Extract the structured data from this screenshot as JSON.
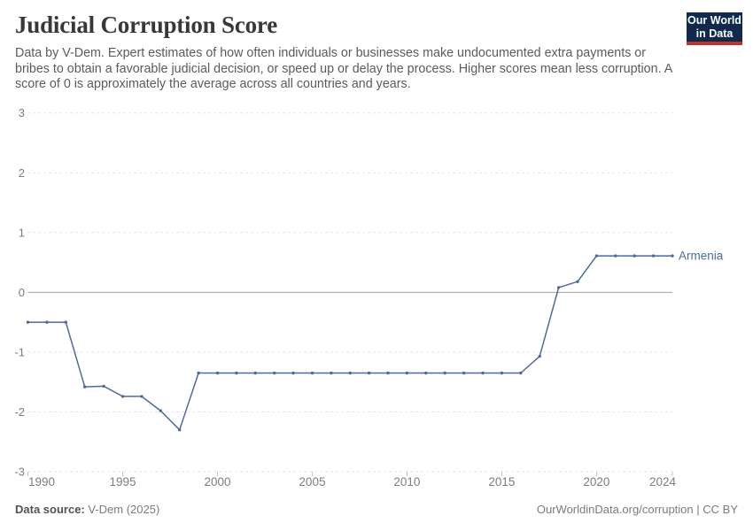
{
  "header": {
    "title": "Judicial Corruption Score",
    "subtitle": "Data by V-Dem. Expert estimates of how often individuals or businesses make undocumented extra payments or bribes to obtain a favorable judicial decision, or speed up or delay the process. Higher scores mean less corruption. A score of 0 is approximately the average across all countries and years.",
    "logo": {
      "line1": "Our World",
      "line2": "in Data",
      "bg_color": "#102a4e",
      "accent_color": "#c0322e"
    }
  },
  "chart_data": {
    "type": "line",
    "title": "Judicial Corruption Score",
    "xlabel": "",
    "ylabel": "",
    "xlim": [
      1990,
      2024
    ],
    "ylim": [
      -3,
      3
    ],
    "x_ticks": [
      1990,
      1995,
      2000,
      2005,
      2010,
      2015,
      2020,
      2024
    ],
    "y_ticks": [
      3,
      2,
      1,
      0,
      -1,
      -2,
      -3
    ],
    "grid": "horizontal-dashed",
    "zero_line": true,
    "legend_position": "end-of-line",
    "series": [
      {
        "name": "Armenia",
        "color": "#4C6A9C",
        "x": [
          1990,
          1991,
          1992,
          1993,
          1994,
          1995,
          1996,
          1997,
          1998,
          1999,
          2000,
          2001,
          2002,
          2003,
          2004,
          2005,
          2006,
          2007,
          2008,
          2009,
          2010,
          2011,
          2012,
          2013,
          2014,
          2015,
          2016,
          2017,
          2018,
          2019,
          2020,
          2021,
          2022,
          2023,
          2024
        ],
        "values": [
          -0.5,
          -0.5,
          -0.5,
          -1.58,
          -1.57,
          -1.74,
          -1.74,
          -1.98,
          -2.3,
          -1.35,
          -1.35,
          -1.35,
          -1.35,
          -1.35,
          -1.35,
          -1.35,
          -1.35,
          -1.35,
          -1.35,
          -1.35,
          -1.35,
          -1.35,
          -1.35,
          -1.35,
          -1.35,
          -1.35,
          -1.35,
          -1.07,
          0.08,
          0.18,
          0.61,
          0.61,
          0.61,
          0.61,
          0.61
        ]
      }
    ],
    "style": {
      "grid_color": "#e0e0e0",
      "zero_line_color": "#a3a3a3",
      "tick_color": "#c6c6c6",
      "axis_text_color": "#7d7d7d"
    }
  },
  "footer": {
    "source_label": "Data source:",
    "source_value": " V-Dem (2025)",
    "link": "OurWorldinData.org/corruption",
    "separator": " | ",
    "license": "CC BY"
  }
}
